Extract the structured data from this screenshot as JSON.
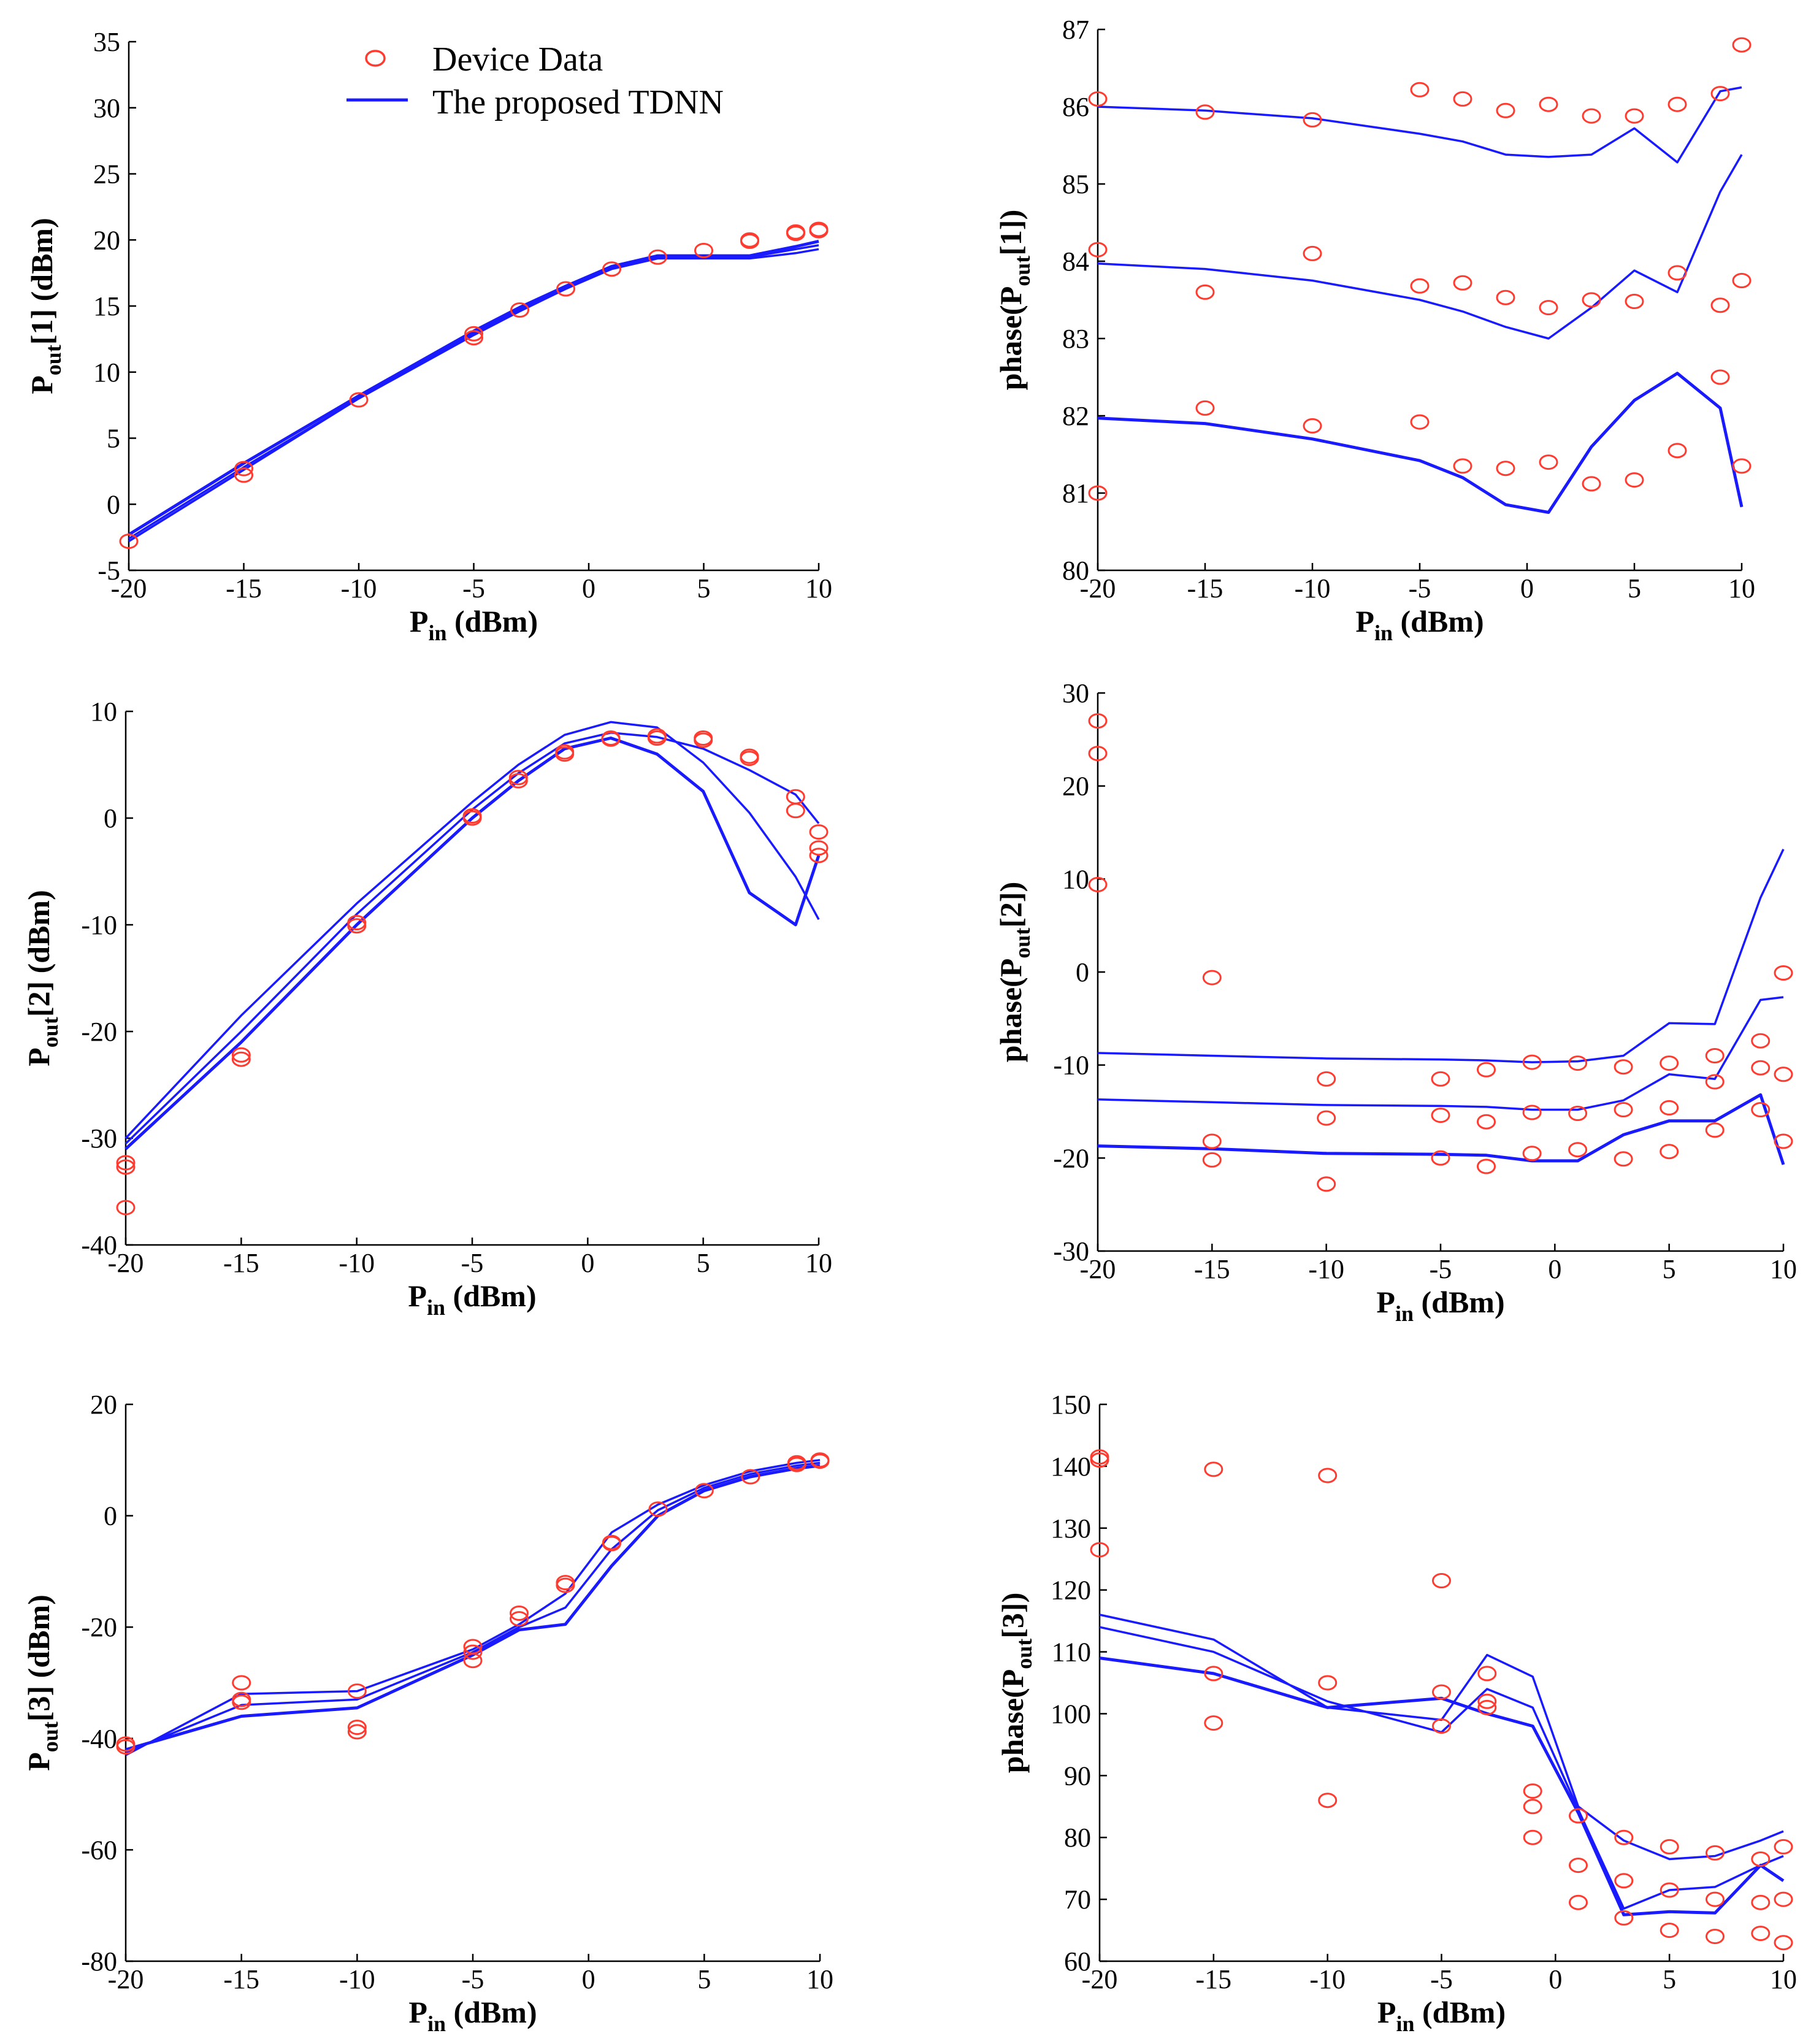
{
  "legend": {
    "device_label": "Device Data",
    "model_label": "The proposed TDNN",
    "device_color": "#ff3b30",
    "model_color": "#1a1aff"
  },
  "chart_data": [
    {
      "id": "pout1",
      "type": "line",
      "ylabel": "Pout[1] (dBm)",
      "ylabel_main": "P",
      "ylabel_sub": "out",
      "ylabel_rest": "[1] (dBm)",
      "xlabel_main": "P",
      "xlabel_sub": "in",
      "xlabel_rest": " (dBm)",
      "xlim": [
        -20,
        10
      ],
      "ylim": [
        -5,
        35
      ],
      "xticks": [
        -20,
        -15,
        -10,
        -5,
        0,
        5,
        10
      ],
      "yticks": [
        -5,
        0,
        5,
        10,
        15,
        20,
        25,
        30,
        35
      ],
      "x": [
        -20,
        -15,
        -10,
        -5,
        -3,
        -1,
        1,
        3,
        5,
        7,
        9,
        10
      ],
      "series": [
        {
          "name": "The proposed TDNN",
          "values": [
            -2.6,
            2.8,
            8.0,
            12.9,
            14.7,
            16.3,
            17.9,
            18.7,
            18.7,
            18.7,
            19.3,
            19.6
          ]
        },
        {
          "name": "The proposed TDNN",
          "values": [
            -2.8,
            2.6,
            8.0,
            12.8,
            14.6,
            16.3,
            17.8,
            18.6,
            18.6,
            18.6,
            19.0,
            19.3
          ]
        },
        {
          "name": "The proposed TDNN",
          "values": [
            -2.3,
            3.1,
            8.2,
            13.1,
            14.9,
            16.5,
            18.0,
            18.8,
            18.8,
            18.8,
            19.5,
            19.9
          ]
        }
      ],
      "device_points": [
        [
          -20,
          -2.8
        ],
        [
          -15,
          2.2
        ],
        [
          -15,
          2.7
        ],
        [
          -10,
          7.9
        ],
        [
          -5,
          12.6
        ],
        [
          -5,
          12.9
        ],
        [
          -3,
          14.7
        ],
        [
          -1,
          16.3
        ],
        [
          1,
          17.8
        ],
        [
          3,
          18.7
        ],
        [
          5,
          19.2
        ],
        [
          7,
          19.9
        ],
        [
          7,
          20.0
        ],
        [
          9,
          20.5
        ],
        [
          9,
          20.6
        ],
        [
          10,
          20.7
        ],
        [
          10,
          20.8
        ]
      ]
    },
    {
      "id": "phase1",
      "type": "line",
      "ylabel": "phase(Pout[1])",
      "ylabel_main": "phase(P",
      "ylabel_sub": "out",
      "ylabel_rest": "[1])",
      "xlabel_main": "P",
      "xlabel_sub": "in",
      "xlabel_rest": " (dBm)",
      "xlim": [
        -20,
        10
      ],
      "ylim": [
        80,
        87
      ],
      "xticks": [
        -20,
        -15,
        -10,
        -5,
        0,
        5,
        10
      ],
      "yticks": [
        80,
        81,
        82,
        83,
        84,
        85,
        86,
        87
      ],
      "x": [
        -20,
        -15,
        -10,
        -5,
        -3,
        -1,
        1,
        3,
        5,
        7,
        9,
        10
      ],
      "series": [
        {
          "name": "The proposed TDNN",
          "values": [
            86.0,
            85.95,
            85.85,
            85.65,
            85.55,
            85.38,
            85.35,
            85.38,
            85.72,
            85.28,
            86.2,
            86.25
          ]
        },
        {
          "name": "The proposed TDNN",
          "values": [
            83.97,
            83.9,
            83.75,
            83.5,
            83.35,
            83.15,
            83.0,
            83.4,
            83.88,
            83.6,
            84.9,
            85.38
          ]
        },
        {
          "name": "The proposed TDNN",
          "values": [
            81.97,
            81.9,
            81.7,
            81.42,
            81.2,
            80.85,
            80.75,
            81.6,
            82.2,
            82.55,
            82.1,
            80.82
          ]
        }
      ],
      "device_points": [
        [
          -20,
          86.1
        ],
        [
          -20,
          84.15
        ],
        [
          -20,
          81.0
        ],
        [
          -15,
          85.93
        ],
        [
          -15,
          83.6
        ],
        [
          -15,
          82.1
        ],
        [
          -10,
          85.83
        ],
        [
          -10,
          84.1
        ],
        [
          -10,
          81.87
        ],
        [
          -5,
          86.22
        ],
        [
          -5,
          83.68
        ],
        [
          -5,
          81.92
        ],
        [
          -3,
          86.1
        ],
        [
          -3,
          83.72
        ],
        [
          -3,
          81.35
        ],
        [
          -1,
          85.95
        ],
        [
          -1,
          83.53
        ],
        [
          -1,
          81.32
        ],
        [
          1,
          86.03
        ],
        [
          1,
          83.4
        ],
        [
          1,
          81.4
        ],
        [
          3,
          85.88
        ],
        [
          3,
          83.5
        ],
        [
          3,
          81.12
        ],
        [
          5,
          85.88
        ],
        [
          5,
          83.48
        ],
        [
          5,
          81.17
        ],
        [
          7,
          86.03
        ],
        [
          7,
          83.85
        ],
        [
          7,
          81.55
        ],
        [
          9,
          86.17
        ],
        [
          9,
          83.43
        ],
        [
          9,
          82.5
        ],
        [
          10,
          86.8
        ],
        [
          10,
          83.75
        ],
        [
          10,
          81.35
        ]
      ]
    },
    {
      "id": "pout2",
      "type": "line",
      "ylabel": "Pout[2] (dBm)",
      "ylabel_main": "P",
      "ylabel_sub": "out",
      "ylabel_rest": "[2] (dBm)",
      "xlabel_main": "P",
      "xlabel_sub": "in",
      "xlabel_rest": " (dBm)",
      "xlim": [
        -20,
        10
      ],
      "ylim": [
        -40,
        10
      ],
      "xticks": [
        -20,
        -15,
        -10,
        -5,
        0,
        5,
        10
      ],
      "yticks": [
        -40,
        -30,
        -20,
        -10,
        0,
        10
      ],
      "x": [
        -20,
        -15,
        -10,
        -5,
        -3,
        -1,
        1,
        3,
        5,
        7,
        9,
        10
      ],
      "series": [
        {
          "name": "The proposed TDNN",
          "values": [
            -30.0,
            -18.5,
            -8.0,
            1.5,
            5.0,
            7.8,
            9.0,
            8.5,
            5.2,
            0.5,
            -5.5,
            -9.5
          ]
        },
        {
          "name": "The proposed TDNN",
          "values": [
            -30.5,
            -20.0,
            -9.0,
            0.8,
            4.2,
            7.0,
            8.0,
            7.6,
            6.5,
            4.5,
            2.2,
            -0.5
          ]
        },
        {
          "name": "The proposed TDNN",
          "values": [
            -31.0,
            -21.0,
            -10.0,
            0.0,
            3.5,
            6.5,
            7.5,
            6.0,
            2.5,
            -7.0,
            -10.0,
            -3.5
          ]
        }
      ],
      "device_points": [
        [
          -20,
          -32.7
        ],
        [
          -20,
          -32.3
        ],
        [
          -20,
          -36.5
        ],
        [
          -15,
          -22.2
        ],
        [
          -15,
          -22.6
        ],
        [
          -10,
          -9.8
        ],
        [
          -10,
          -10.1
        ],
        [
          -5,
          0.2
        ],
        [
          -5,
          0.0
        ],
        [
          -3,
          3.8
        ],
        [
          -3,
          3.5
        ],
        [
          -1,
          6.2
        ],
        [
          -1,
          6.0
        ],
        [
          1,
          7.5
        ],
        [
          1,
          7.4
        ],
        [
          3,
          7.7
        ],
        [
          3,
          7.5
        ],
        [
          5,
          7.5
        ],
        [
          5,
          7.3
        ],
        [
          7,
          5.8
        ],
        [
          7,
          5.6
        ],
        [
          9,
          2.0
        ],
        [
          9,
          0.7
        ],
        [
          10,
          -1.3
        ],
        [
          10,
          -2.8
        ],
        [
          10,
          -3.5
        ]
      ]
    },
    {
      "id": "phase2",
      "type": "line",
      "ylabel": "phase(Pout[2])",
      "ylabel_main": "phase(P",
      "ylabel_sub": "out",
      "ylabel_rest": "[2])",
      "xlabel_main": "P",
      "xlabel_sub": "in",
      "xlabel_rest": " (dBm)",
      "xlim": [
        -20,
        10
      ],
      "ylim": [
        -30,
        30
      ],
      "xticks": [
        -20,
        -15,
        -10,
        -5,
        0,
        5,
        10
      ],
      "yticks": [
        -30,
        -20,
        -10,
        0,
        10,
        20,
        30
      ],
      "x": [
        -20,
        -15,
        -10,
        -5,
        -3,
        -1,
        1,
        3,
        5,
        7,
        9,
        10
      ],
      "series": [
        {
          "name": "The proposed TDNN",
          "values": [
            -8.7,
            -9.0,
            -9.3,
            -9.4,
            -9.5,
            -9.7,
            -9.6,
            -9.0,
            -5.5,
            -5.6,
            8.0,
            13.2
          ]
        },
        {
          "name": "The proposed TDNN",
          "values": [
            -13.7,
            -14.0,
            -14.3,
            -14.4,
            -14.5,
            -14.8,
            -14.8,
            -13.8,
            -11.0,
            -11.5,
            -3.0,
            -2.7
          ]
        },
        {
          "name": "The proposed TDNN",
          "values": [
            -18.7,
            -19.0,
            -19.5,
            -19.6,
            -19.7,
            -20.3,
            -20.3,
            -17.5,
            -16.0,
            -16.0,
            -13.2,
            -20.7
          ]
        }
      ],
      "device_points": [
        [
          -20,
          27.0
        ],
        [
          -20,
          23.5
        ],
        [
          -20,
          9.4
        ],
        [
          -15,
          -0.6
        ],
        [
          -15,
          -18.2
        ],
        [
          -15,
          -20.2
        ],
        [
          -10,
          -11.5
        ],
        [
          -10,
          -15.7
        ],
        [
          -10,
          -22.8
        ],
        [
          -5,
          -11.5
        ],
        [
          -5,
          -15.4
        ],
        [
          -5,
          -20.0
        ],
        [
          -3,
          -10.5
        ],
        [
          -3,
          -16.1
        ],
        [
          -3,
          -20.9
        ],
        [
          -1,
          -9.7
        ],
        [
          -1,
          -15.1
        ],
        [
          -1,
          -19.5
        ],
        [
          1,
          -9.8
        ],
        [
          1,
          -15.2
        ],
        [
          1,
          -19.1
        ],
        [
          3,
          -10.2
        ],
        [
          3,
          -14.8
        ],
        [
          3,
          -20.1
        ],
        [
          5,
          -9.8
        ],
        [
          5,
          -14.6
        ],
        [
          5,
          -19.3
        ],
        [
          7,
          -9.0
        ],
        [
          7,
          -11.8
        ],
        [
          7,
          -17.0
        ],
        [
          9,
          -7.4
        ],
        [
          9,
          -10.3
        ],
        [
          9,
          -14.8
        ],
        [
          10,
          -0.1
        ],
        [
          10,
          -11.0
        ],
        [
          10,
          -18.2
        ]
      ]
    },
    {
      "id": "pout3",
      "type": "line",
      "ylabel": "Pout[3] (dBm)",
      "ylabel_main": "P",
      "ylabel_sub": "out",
      "ylabel_rest": "[3] (dBm)",
      "xlabel_main": "P",
      "xlabel_sub": "in",
      "xlabel_rest": " (dBm)",
      "xlim": [
        -20,
        10
      ],
      "ylim": [
        -80,
        20
      ],
      "xticks": [
        -20,
        -15,
        -10,
        -5,
        0,
        5,
        10
      ],
      "yticks": [
        -80,
        -60,
        -40,
        -20,
        0,
        20
      ],
      "x": [
        -20,
        -15,
        -10,
        -5,
        -3,
        -1,
        1,
        3,
        5,
        7,
        9,
        10
      ],
      "series": [
        {
          "name": "The proposed TDNN",
          "values": [
            -43.0,
            -32.0,
            -31.5,
            -24.0,
            -19.5,
            -14.0,
            -3.0,
            2.0,
            5.5,
            8.0,
            9.5,
            10.0
          ]
        },
        {
          "name": "The proposed TDNN",
          "values": [
            -42.5,
            -34.0,
            -33.0,
            -24.5,
            -20.0,
            -16.5,
            -6.0,
            1.0,
            5.0,
            7.5,
            9.0,
            9.5
          ]
        },
        {
          "name": "The proposed TDNN",
          "values": [
            -42.0,
            -36.0,
            -34.5,
            -25.0,
            -20.5,
            -19.5,
            -9.0,
            0.0,
            4.5,
            7.0,
            8.5,
            9.0
          ]
        }
      ],
      "device_points": [
        [
          -20,
          -41.0
        ],
        [
          -20,
          -41.5
        ],
        [
          -15,
          -30.0
        ],
        [
          -15,
          -33.0
        ],
        [
          -15,
          -33.5
        ],
        [
          -10,
          -31.5
        ],
        [
          -10,
          -38.0
        ],
        [
          -10,
          -38.8
        ],
        [
          -5,
          -23.5
        ],
        [
          -5,
          -24.5
        ],
        [
          -5,
          -26.0
        ],
        [
          -3,
          -17.5
        ],
        [
          -3,
          -18.5
        ],
        [
          -1,
          -12.0
        ],
        [
          -1,
          -12.5
        ],
        [
          1,
          -4.8
        ],
        [
          1,
          -5.0
        ],
        [
          3,
          1.2
        ],
        [
          5,
          4.5
        ],
        [
          7,
          7.0
        ],
        [
          9,
          9.2
        ],
        [
          9,
          9.5
        ],
        [
          10,
          9.8
        ],
        [
          10,
          10.0
        ]
      ]
    },
    {
      "id": "phase3",
      "type": "line",
      "ylabel": "phase(Pout[3])",
      "ylabel_main": "phase(P",
      "ylabel_sub": "out",
      "ylabel_rest": "[3])",
      "xlabel_main": "P",
      "xlabel_sub": "in",
      "xlabel_rest": " (dBm)",
      "xlim": [
        -20,
        10
      ],
      "ylim": [
        60,
        150
      ],
      "xticks": [
        -20,
        -15,
        -10,
        -5,
        0,
        5,
        10
      ],
      "yticks": [
        60,
        70,
        80,
        90,
        100,
        110,
        120,
        130,
        140,
        150
      ],
      "x": [
        -20,
        -15,
        -10,
        -5,
        -3,
        -1,
        1,
        3,
        5,
        7,
        9,
        10
      ],
      "series": [
        {
          "name": "The proposed TDNN",
          "values": [
            116.0,
            112.0,
            101.0,
            99.0,
            109.5,
            106.0,
            85.0,
            79.5,
            76.5,
            77.0,
            79.5,
            81.0
          ]
        },
        {
          "name": "The proposed TDNN",
          "values": [
            114.0,
            110.0,
            102.0,
            97.0,
            104.0,
            101.0,
            84.5,
            68.5,
            71.5,
            72.0,
            75.5,
            77.0
          ]
        },
        {
          "name": "The proposed TDNN",
          "values": [
            109.0,
            106.5,
            101.0,
            102.5,
            100.0,
            98.0,
            84.0,
            67.5,
            68.0,
            67.8,
            75.5,
            73.0
          ]
        }
      ],
      "device_points": [
        [
          -20,
          141.5
        ],
        [
          -20,
          141.0
        ],
        [
          -20,
          126.5
        ],
        [
          -15,
          139.5
        ],
        [
          -15,
          106.5
        ],
        [
          -15,
          98.5
        ],
        [
          -10,
          138.5
        ],
        [
          -10,
          105.0
        ],
        [
          -10,
          86.0
        ],
        [
          -5,
          121.5
        ],
        [
          -5,
          103.5
        ],
        [
          -5,
          98.0
        ],
        [
          -3,
          106.5
        ],
        [
          -3,
          102.0
        ],
        [
          -3,
          101.0
        ],
        [
          -1,
          87.5
        ],
        [
          -1,
          85.0
        ],
        [
          -1,
          80.0
        ],
        [
          1,
          83.5
        ],
        [
          1,
          75.5
        ],
        [
          1,
          69.5
        ],
        [
          3,
          80.0
        ],
        [
          3,
          73.0
        ],
        [
          3,
          67.0
        ],
        [
          5,
          78.5
        ],
        [
          5,
          71.5
        ],
        [
          5,
          65.0
        ],
        [
          7,
          77.5
        ],
        [
          7,
          70.0
        ],
        [
          7,
          64.0
        ],
        [
          9,
          76.5
        ],
        [
          9,
          69.5
        ],
        [
          9,
          64.5
        ],
        [
          10,
          78.5
        ],
        [
          10,
          70.0
        ],
        [
          10,
          63.0
        ]
      ]
    }
  ]
}
